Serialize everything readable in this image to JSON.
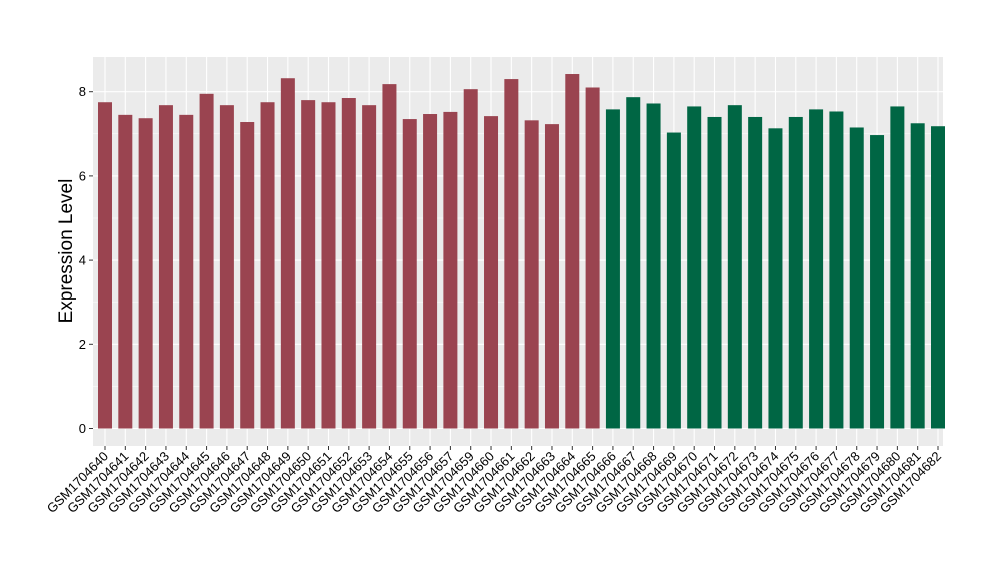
{
  "chart_data": {
    "type": "bar",
    "title": "",
    "xlabel": "",
    "ylabel": "Expression Level",
    "ylim": [
      0,
      8.8
    ],
    "yticks": [
      0,
      2,
      4,
      6,
      8
    ],
    "grid": true,
    "legend": "none",
    "colors": {
      "group1": "#9a4450",
      "group2": "#006644",
      "panel": "#ebebeb",
      "grid": "#ffffff"
    },
    "categories": [
      "GSM1704640",
      "GSM1704641",
      "GSM1704642",
      "GSM1704643",
      "GSM1704644",
      "GSM1704645",
      "GSM1704646",
      "GSM1704647",
      "GSM1704648",
      "GSM1704649",
      "GSM1704650",
      "GSM1704651",
      "GSM1704652",
      "GSM1704653",
      "GSM1704654",
      "GSM1704655",
      "GSM1704656",
      "GSM1704657",
      "GSM1704659",
      "GSM1704660",
      "GSM1704661",
      "GSM1704662",
      "GSM1704663",
      "GSM1704664",
      "GSM1704665",
      "GSM1704666",
      "GSM1704667",
      "GSM1704668",
      "GSM1704669",
      "GSM1704670",
      "GSM1704671",
      "GSM1704672",
      "GSM1704673",
      "GSM1704674",
      "GSM1704675",
      "GSM1704676",
      "GSM1704677",
      "GSM1704678",
      "GSM1704679",
      "GSM1704680",
      "GSM1704681",
      "GSM1704682"
    ],
    "values": [
      7.75,
      7.45,
      7.37,
      7.68,
      7.45,
      7.95,
      7.68,
      7.28,
      7.75,
      8.32,
      7.8,
      7.75,
      7.85,
      7.68,
      8.18,
      7.35,
      7.47,
      7.52,
      8.06,
      7.42,
      8.3,
      7.32,
      7.23,
      8.42,
      8.1,
      7.58,
      7.87,
      7.72,
      7.03,
      7.65,
      7.4,
      7.68,
      7.4,
      7.13,
      7.4,
      7.58,
      7.53,
      7.15,
      6.97,
      7.65,
      7.25,
      7.18
    ],
    "groups": [
      1,
      1,
      1,
      1,
      1,
      1,
      1,
      1,
      1,
      1,
      1,
      1,
      1,
      1,
      1,
      1,
      1,
      1,
      1,
      1,
      1,
      1,
      1,
      1,
      1,
      2,
      2,
      2,
      2,
      2,
      2,
      2,
      2,
      2,
      2,
      2,
      2,
      2,
      2,
      2,
      2,
      2
    ]
  }
}
